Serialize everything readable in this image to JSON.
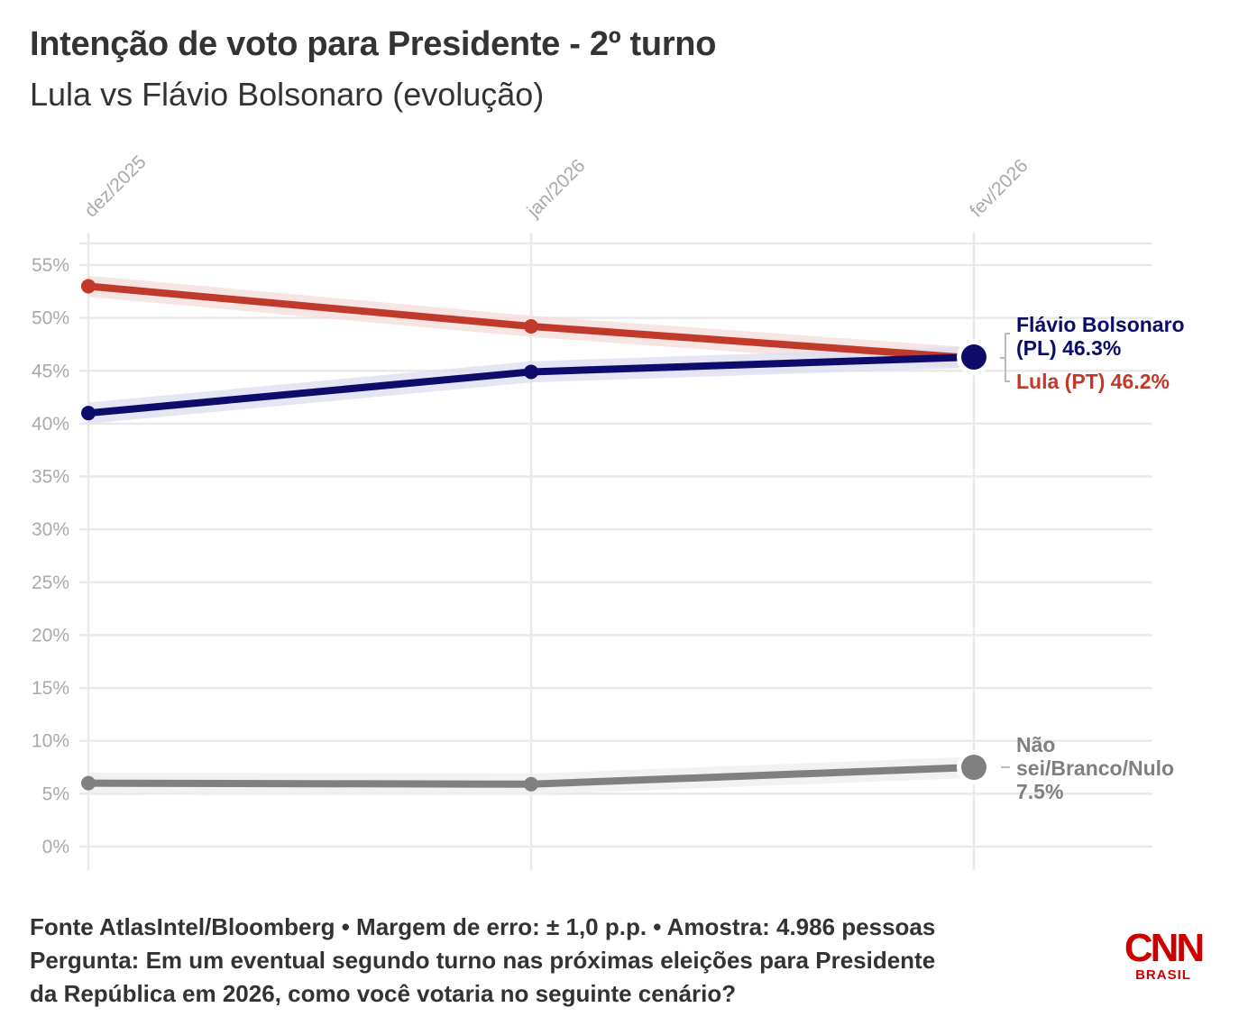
{
  "header": {
    "title": "Intenção de voto para Presidente - 2º turno",
    "subtitle": "Lula vs Flávio Bolsonaro (evolução)"
  },
  "footer": {
    "line1": "Fonte AtlasIntel/Bloomberg • Margem de erro: ± 1,0 p.p. • Amostra: 4.986 pessoas",
    "line2": "Pergunta: Em um eventual segundo turno nas próximas eleições para Presidente",
    "line3": "da República em 2026, como você votaria no seguinte cenário?"
  },
  "logo": {
    "main": "CNN",
    "sub": "BRASIL"
  },
  "chart_data": {
    "type": "line",
    "title": "Intenção de voto para Presidente - 2º turno",
    "subtitle": "Lula vs Flávio Bolsonaro (evolução)",
    "categories": [
      "dez/2025",
      "jan/2026",
      "fev/2026"
    ],
    "ylim": [
      0,
      55
    ],
    "yticks": [
      0,
      5,
      10,
      15,
      20,
      25,
      30,
      35,
      40,
      45,
      50,
      55
    ],
    "ytick_labels": [
      "0%",
      "5%",
      "10%",
      "15%",
      "20%",
      "25%",
      "30%",
      "35%",
      "40%",
      "45%",
      "50%",
      "55%"
    ],
    "grid": true,
    "margin_of_error": 1.0,
    "series": [
      {
        "name": "Lula (PT)",
        "values": [
          53.0,
          49.2,
          46.2
        ],
        "color": "#c0392b",
        "band_color": "#f3dcda",
        "end_label": [
          "Lula (PT) 46.2%"
        ]
      },
      {
        "name": "Flávio Bolsonaro (PL)",
        "values": [
          41.0,
          44.9,
          46.3
        ],
        "color": "#0d0c6b",
        "band_color": "#dcdcf0",
        "end_label": [
          "Flávio Bolsonaro",
          "(PL) 46.3%"
        ]
      },
      {
        "name": "Não sei/Branco/Nulo",
        "values": [
          6.0,
          5.9,
          7.5
        ],
        "color": "#808080",
        "band_color": "#eeeeee",
        "end_label": [
          "Não",
          "sei/Branco/Nulo",
          "7.5%"
        ]
      }
    ]
  }
}
